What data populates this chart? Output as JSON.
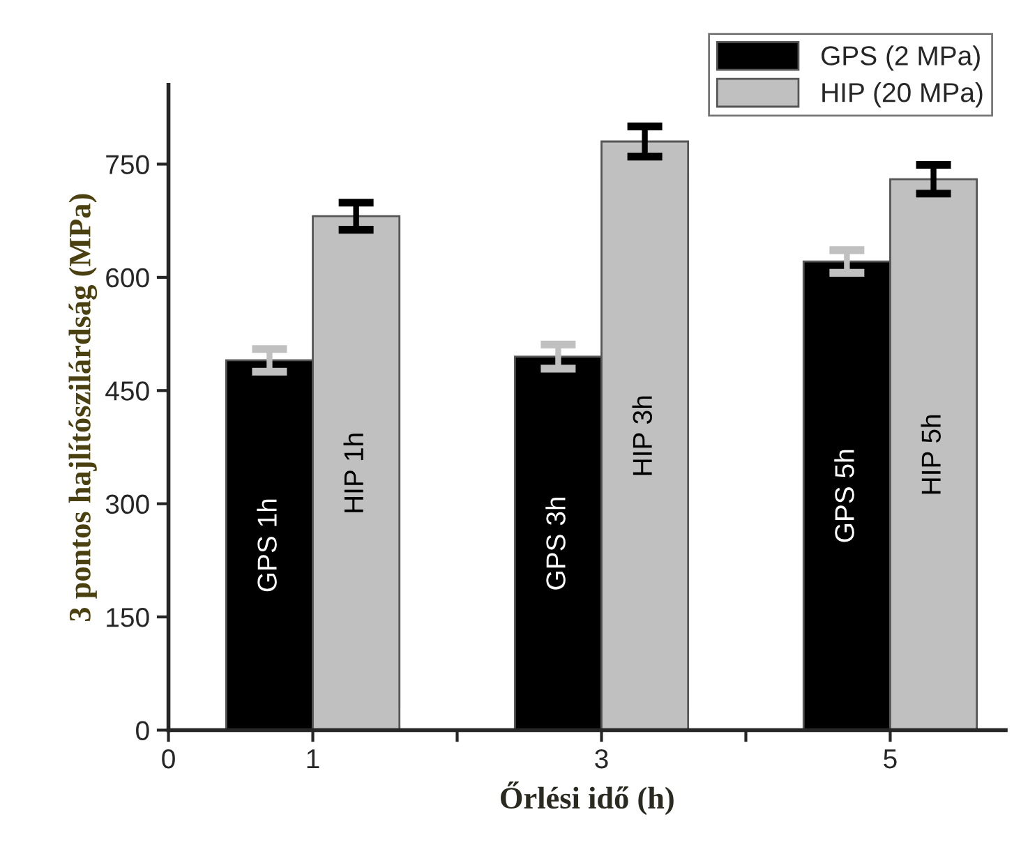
{
  "chart_data": {
    "type": "bar",
    "xlabel": "Őrlési idő (h)",
    "ylabel": "3 pontos hajlítószilárdság (MPa)",
    "x": [
      1,
      3,
      5
    ],
    "series": [
      {
        "name": "GPS (2 MPa)",
        "color": "#000000",
        "values": [
          490,
          495,
          621
        ],
        "errors": [
          15,
          16,
          15
        ],
        "value_labels": [
          "GPS 1h",
          "GPS 3h",
          "GPS 5h"
        ]
      },
      {
        "name": "HIP (20 MPa)",
        "color": "#c0c0c0",
        "values": [
          681,
          780,
          730
        ],
        "errors": [
          18,
          20,
          19
        ],
        "value_labels": [
          "HIP 1h",
          "HIP 3h",
          "HIP 5h"
        ]
      }
    ],
    "xlim": [
      0,
      5.8
    ],
    "xticks": [
      0,
      1,
      {
        "value": 2,
        "label": null
      },
      3,
      {
        "value": 4,
        "label": null
      },
      5
    ],
    "ylim": [
      0,
      855
    ],
    "yticks": [
      0,
      150,
      300,
      450,
      600,
      750
    ],
    "grid": false,
    "legend": "top right"
  }
}
